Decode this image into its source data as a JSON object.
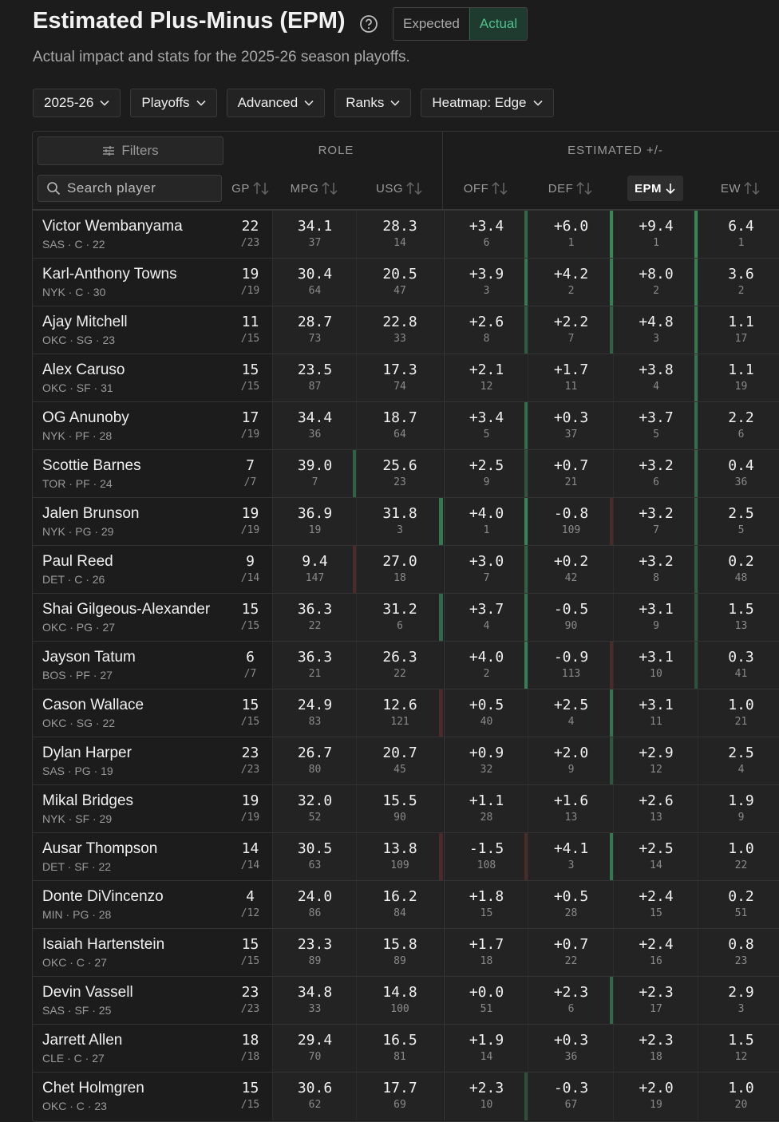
{
  "header": {
    "title": "Estimated Plus-Minus (EPM)",
    "subtitle": "Actual impact and stats for the 2025-26 season playoffs.",
    "toggle": [
      "Expected",
      "Actual"
    ],
    "filters": [
      "2025-26",
      "Playoffs",
      "Advanced",
      "Ranks",
      "Heatmap: Edge"
    ]
  },
  "table": {
    "filters_button": "Filters",
    "search_placeholder": "Search player",
    "groups": [
      "ROLE",
      "ESTIMATED +/-"
    ],
    "columns": [
      "GP",
      "MPG",
      "USG",
      "OFF",
      "DEF",
      "EPM",
      "EW"
    ],
    "rows": [
      {
        "name": "Victor Wembanyama",
        "meta": "SAS · C · 22",
        "gp": "22",
        "gp_total": "/23",
        "mpg": "34.1",
        "mpg_rank": 37,
        "usg": "28.3",
        "usg_rank": 14,
        "off": "+3.4",
        "off_rank": 6,
        "def": "+6.0",
        "def_rank": 1,
        "epm": "+9.4",
        "epm_rank": 1,
        "ew": "6.4",
        "ew_rank": 1
      },
      {
        "name": "Karl-Anthony Towns",
        "meta": "NYK · C · 30",
        "gp": "19",
        "gp_total": "/19",
        "mpg": "30.4",
        "mpg_rank": 64,
        "usg": "20.5",
        "usg_rank": 47,
        "off": "+3.9",
        "off_rank": 3,
        "def": "+4.2",
        "def_rank": 2,
        "epm": "+8.0",
        "epm_rank": 2,
        "ew": "3.6",
        "ew_rank": 2
      },
      {
        "name": "Ajay Mitchell",
        "meta": "OKC · SG · 23",
        "gp": "11",
        "gp_total": "/15",
        "mpg": "28.7",
        "mpg_rank": 73,
        "usg": "22.8",
        "usg_rank": 33,
        "off": "+2.6",
        "off_rank": 8,
        "def": "+2.2",
        "def_rank": 7,
        "epm": "+4.8",
        "epm_rank": 3,
        "ew": "1.1",
        "ew_rank": 17
      },
      {
        "name": "Alex Caruso",
        "meta": "OKC · SF · 31",
        "gp": "15",
        "gp_total": "/15",
        "mpg": "23.5",
        "mpg_rank": 87,
        "usg": "17.3",
        "usg_rank": 74,
        "off": "+2.1",
        "off_rank": 12,
        "def": "+1.7",
        "def_rank": 11,
        "epm": "+3.8",
        "epm_rank": 4,
        "ew": "1.1",
        "ew_rank": 19
      },
      {
        "name": "OG Anunoby",
        "meta": "NYK · PF · 28",
        "gp": "17",
        "gp_total": "/19",
        "mpg": "34.4",
        "mpg_rank": 36,
        "usg": "18.7",
        "usg_rank": 64,
        "off": "+3.4",
        "off_rank": 5,
        "def": "+0.3",
        "def_rank": 37,
        "epm": "+3.7",
        "epm_rank": 5,
        "ew": "2.2",
        "ew_rank": 6
      },
      {
        "name": "Scottie Barnes",
        "meta": "TOR · PF · 24",
        "gp": "7",
        "gp_total": "/7",
        "mpg": "39.0",
        "mpg_rank": 7,
        "usg": "25.6",
        "usg_rank": 23,
        "off": "+2.5",
        "off_rank": 9,
        "def": "+0.7",
        "def_rank": 21,
        "epm": "+3.2",
        "epm_rank": 6,
        "ew": "0.4",
        "ew_rank": 36
      },
      {
        "name": "Jalen Brunson",
        "meta": "NYK · PG · 29",
        "gp": "19",
        "gp_total": "/19",
        "mpg": "36.9",
        "mpg_rank": 19,
        "usg": "31.8",
        "usg_rank": 3,
        "off": "+4.0",
        "off_rank": 1,
        "def": "-0.8",
        "def_rank": 109,
        "epm": "+3.2",
        "epm_rank": 7,
        "ew": "2.5",
        "ew_rank": 5
      },
      {
        "name": "Paul Reed",
        "meta": "DET · C · 26",
        "gp": "9",
        "gp_total": "/14",
        "mpg": "9.4",
        "mpg_rank": 147,
        "usg": "27.0",
        "usg_rank": 18,
        "off": "+3.0",
        "off_rank": 7,
        "def": "+0.2",
        "def_rank": 42,
        "epm": "+3.2",
        "epm_rank": 8,
        "ew": "0.2",
        "ew_rank": 48
      },
      {
        "name": "Shai Gilgeous-Alexander",
        "meta": "OKC · PG · 27",
        "gp": "15",
        "gp_total": "/15",
        "mpg": "36.3",
        "mpg_rank": 22,
        "usg": "31.2",
        "usg_rank": 6,
        "off": "+3.7",
        "off_rank": 4,
        "def": "-0.5",
        "def_rank": 90,
        "epm": "+3.1",
        "epm_rank": 9,
        "ew": "1.5",
        "ew_rank": 13
      },
      {
        "name": "Jayson Tatum",
        "meta": "BOS · PF · 27",
        "gp": "6",
        "gp_total": "/7",
        "mpg": "36.3",
        "mpg_rank": 21,
        "usg": "26.3",
        "usg_rank": 22,
        "off": "+4.0",
        "off_rank": 2,
        "def": "-0.9",
        "def_rank": 113,
        "epm": "+3.1",
        "epm_rank": 10,
        "ew": "0.3",
        "ew_rank": 41
      },
      {
        "name": "Cason Wallace",
        "meta": "OKC · SG · 22",
        "gp": "15",
        "gp_total": "/15",
        "mpg": "24.9",
        "mpg_rank": 83,
        "usg": "12.6",
        "usg_rank": 121,
        "off": "+0.5",
        "off_rank": 40,
        "def": "+2.5",
        "def_rank": 4,
        "epm": "+3.1",
        "epm_rank": 11,
        "ew": "1.0",
        "ew_rank": 21
      },
      {
        "name": "Dylan Harper",
        "meta": "SAS · PG · 19",
        "gp": "23",
        "gp_total": "/23",
        "mpg": "26.7",
        "mpg_rank": 80,
        "usg": "20.7",
        "usg_rank": 45,
        "off": "+0.9",
        "off_rank": 32,
        "def": "+2.0",
        "def_rank": 9,
        "epm": "+2.9",
        "epm_rank": 12,
        "ew": "2.5",
        "ew_rank": 4
      },
      {
        "name": "Mikal Bridges",
        "meta": "NYK · SF · 29",
        "gp": "19",
        "gp_total": "/19",
        "mpg": "32.0",
        "mpg_rank": 52,
        "usg": "15.5",
        "usg_rank": 90,
        "off": "+1.1",
        "off_rank": 28,
        "def": "+1.6",
        "def_rank": 13,
        "epm": "+2.6",
        "epm_rank": 13,
        "ew": "1.9",
        "ew_rank": 9
      },
      {
        "name": "Ausar Thompson",
        "meta": "DET · SF · 22",
        "gp": "14",
        "gp_total": "/14",
        "mpg": "30.5",
        "mpg_rank": 63,
        "usg": "13.8",
        "usg_rank": 109,
        "off": "-1.5",
        "off_rank": 108,
        "def": "+4.1",
        "def_rank": 3,
        "epm": "+2.5",
        "epm_rank": 14,
        "ew": "1.0",
        "ew_rank": 22
      },
      {
        "name": "Donte DiVincenzo",
        "meta": "MIN · PG · 28",
        "gp": "4",
        "gp_total": "/12",
        "mpg": "24.0",
        "mpg_rank": 86,
        "usg": "16.2",
        "usg_rank": 84,
        "off": "+1.8",
        "off_rank": 15,
        "def": "+0.5",
        "def_rank": 28,
        "epm": "+2.4",
        "epm_rank": 15,
        "ew": "0.2",
        "ew_rank": 51
      },
      {
        "name": "Isaiah Hartenstein",
        "meta": "OKC · C · 27",
        "gp": "15",
        "gp_total": "/15",
        "mpg": "23.3",
        "mpg_rank": 89,
        "usg": "15.8",
        "usg_rank": 89,
        "off": "+1.7",
        "off_rank": 18,
        "def": "+0.7",
        "def_rank": 22,
        "epm": "+2.4",
        "epm_rank": 16,
        "ew": "0.8",
        "ew_rank": 23
      },
      {
        "name": "Devin Vassell",
        "meta": "SAS · SF · 25",
        "gp": "23",
        "gp_total": "/23",
        "mpg": "34.8",
        "mpg_rank": 33,
        "usg": "14.8",
        "usg_rank": 100,
        "off": "+0.0",
        "off_rank": 51,
        "def": "+2.3",
        "def_rank": 6,
        "epm": "+2.3",
        "epm_rank": 17,
        "ew": "2.9",
        "ew_rank": 3
      },
      {
        "name": "Jarrett Allen",
        "meta": "CLE · C · 27",
        "gp": "18",
        "gp_total": "/18",
        "mpg": "29.4",
        "mpg_rank": 70,
        "usg": "16.5",
        "usg_rank": 81,
        "off": "+1.9",
        "off_rank": 14,
        "def": "+0.3",
        "def_rank": 36,
        "epm": "+2.3",
        "epm_rank": 18,
        "ew": "1.5",
        "ew_rank": 12
      },
      {
        "name": "Chet Holmgren",
        "meta": "OKC · C · 23",
        "gp": "15",
        "gp_total": "/15",
        "mpg": "30.6",
        "mpg_rank": 62,
        "usg": "17.7",
        "usg_rank": 69,
        "off": "+2.3",
        "off_rank": 10,
        "def": "-0.3",
        "def_rank": 67,
        "epm": "+2.0",
        "epm_rank": 19,
        "ew": "1.0",
        "ew_rank": 20
      }
    ]
  }
}
